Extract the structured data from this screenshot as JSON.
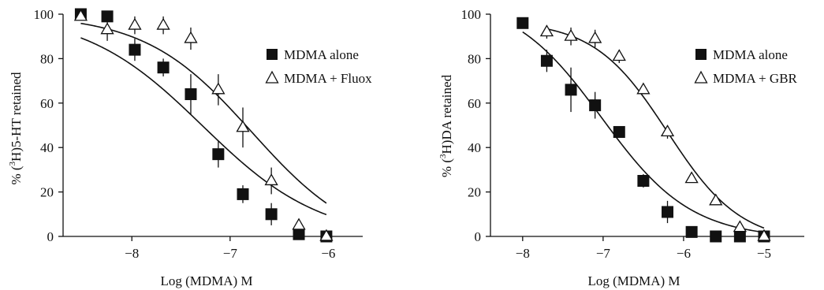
{
  "colors": {
    "ink": "#111111",
    "background": "#ffffff"
  },
  "chart_data": [
    {
      "type": "scatter",
      "xlabel": "Log (MDMA) M",
      "ylabel_prefix": "% (",
      "ylabel_sup": "3",
      "ylabel_suffix": "H)5-HT retained",
      "xlim": [
        -8.7,
        -5.65
      ],
      "ylim": [
        0,
        100
      ],
      "xticks": [
        -8,
        -7,
        -6
      ],
      "xtick_labels": [
        "−8",
        "−7",
        "−6"
      ],
      "yticks": [
        0,
        20,
        40,
        60,
        80,
        100
      ],
      "ytick_labels": [
        "0",
        "20",
        "40",
        "60",
        "80",
        "100"
      ],
      "legend_position": "top-right",
      "series": [
        {
          "name": "MDMA alone",
          "marker": "filled-square",
          "x": [
            -8.52,
            -8.25,
            -7.97,
            -7.68,
            -7.4,
            -7.12,
            -6.87,
            -6.58,
            -6.3,
            -6.02
          ],
          "y": [
            100,
            99,
            84,
            76,
            64,
            37,
            19,
            10,
            1,
            0
          ],
          "err": [
            0,
            0,
            5,
            4,
            9,
            6,
            4,
            5,
            0,
            0
          ],
          "fit": {
            "top": 101,
            "bottom": -1.5,
            "logEC50": -7.28,
            "hill": 0.72
          }
        },
        {
          "name": "MDMA + Fluox",
          "marker": "open-triangle",
          "x": [
            -8.52,
            -8.25,
            -7.97,
            -7.68,
            -7.4,
            -7.12,
            -6.87,
            -6.58,
            -6.3,
            -6.02
          ],
          "y": [
            99,
            93,
            95,
            95,
            89,
            66,
            49,
            25,
            5,
            0
          ],
          "err": [
            0,
            5,
            4,
            4,
            5,
            7,
            9,
            6,
            0,
            0
          ],
          "fit": {
            "top": 100,
            "bottom": -6,
            "logEC50": -6.78,
            "hill": 0.8
          }
        }
      ]
    },
    {
      "type": "scatter",
      "xlabel": "Log (MDMA) M",
      "ylabel_prefix": "% (",
      "ylabel_sup": "3",
      "ylabel_suffix": "H)DA retained",
      "xlim": [
        -8.4,
        -4.5
      ],
      "ylim": [
        0,
        100
      ],
      "xticks": [
        -8,
        -7,
        -6,
        -5
      ],
      "xtick_labels": [
        "−8",
        "−7",
        "−6",
        "−5"
      ],
      "yticks": [
        0,
        20,
        40,
        60,
        80,
        100
      ],
      "ytick_labels": [
        "0",
        "20",
        "40",
        "60",
        "80",
        "100"
      ],
      "legend_position": "top-right",
      "series": [
        {
          "name": "MDMA alone",
          "marker": "filled-square",
          "x": [
            -8,
            -7.7,
            -7.4,
            -7.1,
            -6.8,
            -6.5,
            -6.2,
            -5.9,
            -5.6,
            -5.3,
            -5
          ],
          "y": [
            96,
            79,
            66,
            59,
            47,
            25,
            11,
            2,
            0,
            0,
            0
          ],
          "err": [
            0,
            5,
            10,
            6,
            0,
            3,
            5,
            0,
            0,
            0,
            0
          ],
          "fit": {
            "top": 108,
            "bottom": -1,
            "logEC50": -7.02,
            "hill": 0.78
          }
        },
        {
          "name": "MDMA + GBR",
          "marker": "open-triangle",
          "x": [
            -7.7,
            -7.4,
            -7.1,
            -6.8,
            -6.5,
            -6.2,
            -5.9,
            -5.6,
            -5.3,
            -5
          ],
          "y": [
            92,
            90,
            89,
            81,
            66,
            47,
            26,
            16,
            4,
            0
          ],
          "err": [
            3,
            4,
            4,
            3,
            2,
            3,
            0,
            0,
            0,
            0
          ],
          "fit": {
            "top": 97,
            "bottom": -3,
            "logEC50": -6.2,
            "hill": 0.95
          }
        }
      ]
    }
  ]
}
